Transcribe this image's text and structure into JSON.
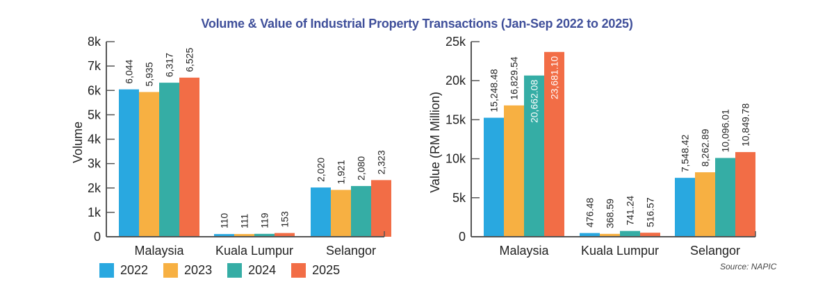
{
  "title": "Volume & Value of Industrial Property Transactions (Jan-Sep 2022 to 2025)",
  "source": "Source: NAPIC",
  "legend": [
    {
      "label": "2022",
      "color": "#29a8e0"
    },
    {
      "label": "2023",
      "color": "#f7b042"
    },
    {
      "label": "2024",
      "color": "#35ada5"
    },
    {
      "label": "2025",
      "color": "#f26d46"
    }
  ],
  "chart_data": [
    {
      "type": "bar",
      "title": "Volume & Value of Industrial Property Transactions (Jan-Sep 2022 to 2025)",
      "xlabel": "",
      "ylabel": "Volume",
      "ylim": [
        0,
        8000
      ],
      "yticks": [
        0,
        1000,
        2000,
        3000,
        4000,
        5000,
        6000,
        7000,
        8000
      ],
      "ytick_labels": [
        "0",
        "1k",
        "2k",
        "3k",
        "4k",
        "5k",
        "6k",
        "7k",
        "8k"
      ],
      "categories": [
        "Malaysia",
        "Kuala Lumpur",
        "Selangor"
      ],
      "grid": false,
      "legend_position": "bottom-left",
      "series": [
        {
          "name": "2022",
          "values": [
            6044,
            110,
            2020
          ],
          "labels": [
            "6,044",
            "110",
            "2,020"
          ]
        },
        {
          "name": "2023",
          "values": [
            5935,
            111,
            1921
          ],
          "labels": [
            "5,935",
            "111",
            "1,921"
          ]
        },
        {
          "name": "2024",
          "values": [
            6317,
            119,
            2080
          ],
          "labels": [
            "6,317",
            "119",
            "2,080"
          ]
        },
        {
          "name": "2025",
          "values": [
            6525,
            153,
            2323
          ],
          "labels": [
            "6,525",
            "153",
            "2,323"
          ]
        }
      ]
    },
    {
      "type": "bar",
      "title": "",
      "xlabel": "",
      "ylabel": "Value (RM Million)",
      "ylim": [
        0,
        25000
      ],
      "yticks": [
        0,
        5000,
        10000,
        15000,
        20000,
        25000
      ],
      "ytick_labels": [
        "0",
        "5k",
        "10k",
        "15k",
        "20k",
        "25k"
      ],
      "categories": [
        "Malaysia",
        "Kuala Lumpur",
        "Selangor"
      ],
      "grid": false,
      "series": [
        {
          "name": "2022",
          "values": [
            15248.48,
            476.48,
            7548.42
          ],
          "labels": [
            "15,248.48",
            "476.48",
            "7,548.42"
          ]
        },
        {
          "name": "2023",
          "values": [
            16829.54,
            368.59,
            8262.89
          ],
          "labels": [
            "16,829.54",
            "368.59",
            "8,262.89"
          ]
        },
        {
          "name": "2024",
          "values": [
            20662.08,
            741.24,
            10096.01
          ],
          "labels": [
            "20,662.08",
            "741.24",
            "10,096.01"
          ]
        },
        {
          "name": "2025",
          "values": [
            23681.1,
            516.57,
            10849.78
          ],
          "labels": [
            "23,681.10",
            "516.57",
            "10,849.78"
          ]
        }
      ],
      "inside_labels": [
        [
          false,
          false,
          false
        ],
        [
          false,
          false,
          false
        ],
        [
          true,
          false,
          false
        ],
        [
          true,
          false,
          false
        ]
      ]
    }
  ]
}
